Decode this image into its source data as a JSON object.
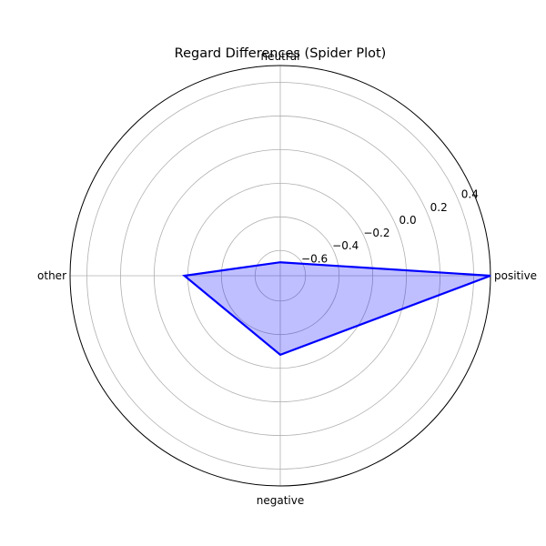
{
  "chart_data": {
    "type": "radar",
    "title": "Regard Differences (Spider Plot)",
    "categories": [
      "positive",
      "neutral",
      "other",
      "negative"
    ],
    "series": [
      {
        "values": [
          0.5,
          -0.67,
          -0.18,
          -0.28
        ],
        "color": "#0000ff",
        "fill": "#0000ff"
      }
    ],
    "rlim": [
      -0.75,
      0.5
    ],
    "rticks": [
      -0.6,
      -0.4,
      -0.2,
      0.0,
      0.2,
      0.4
    ],
    "rtick_labels": [
      "−0.6",
      "−0.4",
      "−0.2",
      "0.0",
      "0.2",
      "0.4"
    ],
    "grid": true
  }
}
